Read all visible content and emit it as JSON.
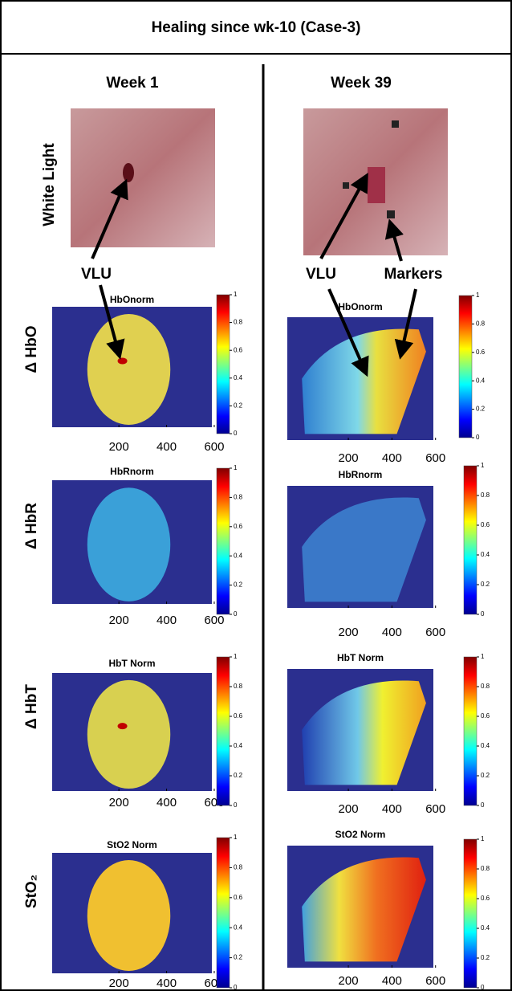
{
  "title": "Healing since wk-10 (Case-3)",
  "columns": [
    {
      "header": "Week 1",
      "panels": [
        {
          "title": "HbOnorm"
        },
        {
          "title": "HbRnorm"
        },
        {
          "title": "HbT Norm"
        },
        {
          "title": "StO2 Norm"
        }
      ]
    },
    {
      "header": "Week 39",
      "panels": [
        {
          "title": "HbOnorm"
        },
        {
          "title": "HbRnorm"
        },
        {
          "title": "HbT Norm"
        },
        {
          "title": "StO2 Norm"
        }
      ]
    }
  ],
  "row_labels": [
    "White Light",
    "Δ HbO",
    "Δ HbR",
    "Δ HbT",
    "StO₂"
  ],
  "annotations": [
    "VLU",
    "VLU",
    "Markers"
  ],
  "xlim": [
    -80,
    590
  ],
  "xticks": [
    200,
    400,
    600
  ],
  "clim": [
    0,
    1
  ],
  "colorbar_ticks": [
    0,
    0.2,
    0.4,
    0.6,
    0.8,
    1
  ]
}
